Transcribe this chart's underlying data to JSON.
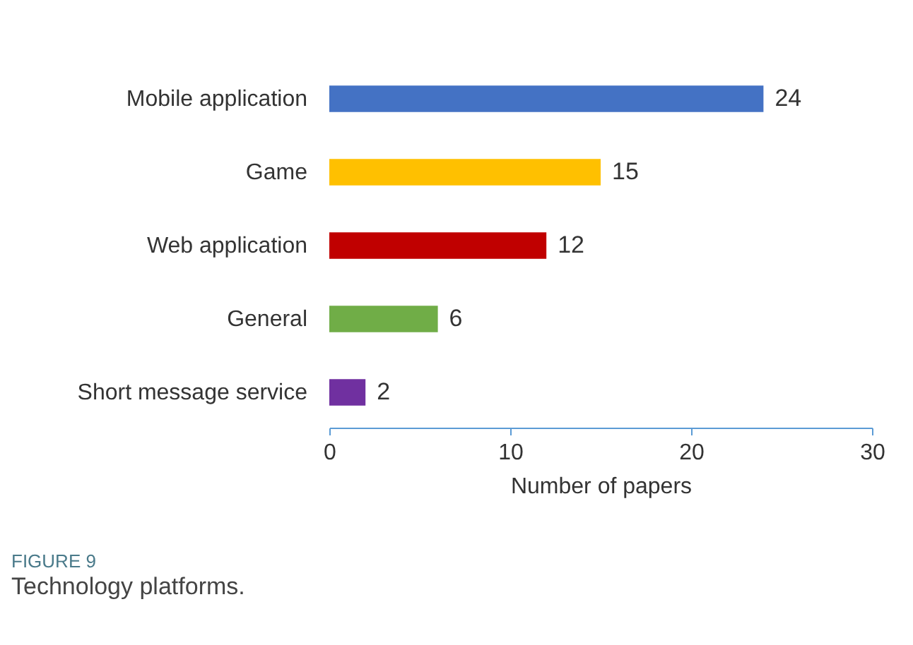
{
  "chart_data": {
    "type": "bar",
    "orientation": "horizontal",
    "categories": [
      "Mobile application",
      "Game",
      "Web application",
      "General",
      "Short message service"
    ],
    "values": [
      24,
      15,
      12,
      6,
      2
    ],
    "colors": [
      "#4472c4",
      "#ffc000",
      "#c00000",
      "#70ad47",
      "#7030a0"
    ],
    "xlabel": "Number of papers",
    "xlim": [
      0,
      30
    ],
    "xticks": [
      0,
      10,
      20,
      30
    ],
    "data_labels": true,
    "grid": false,
    "annotations": [
      "FIGURE 9",
      "Technology platforms."
    ]
  }
}
